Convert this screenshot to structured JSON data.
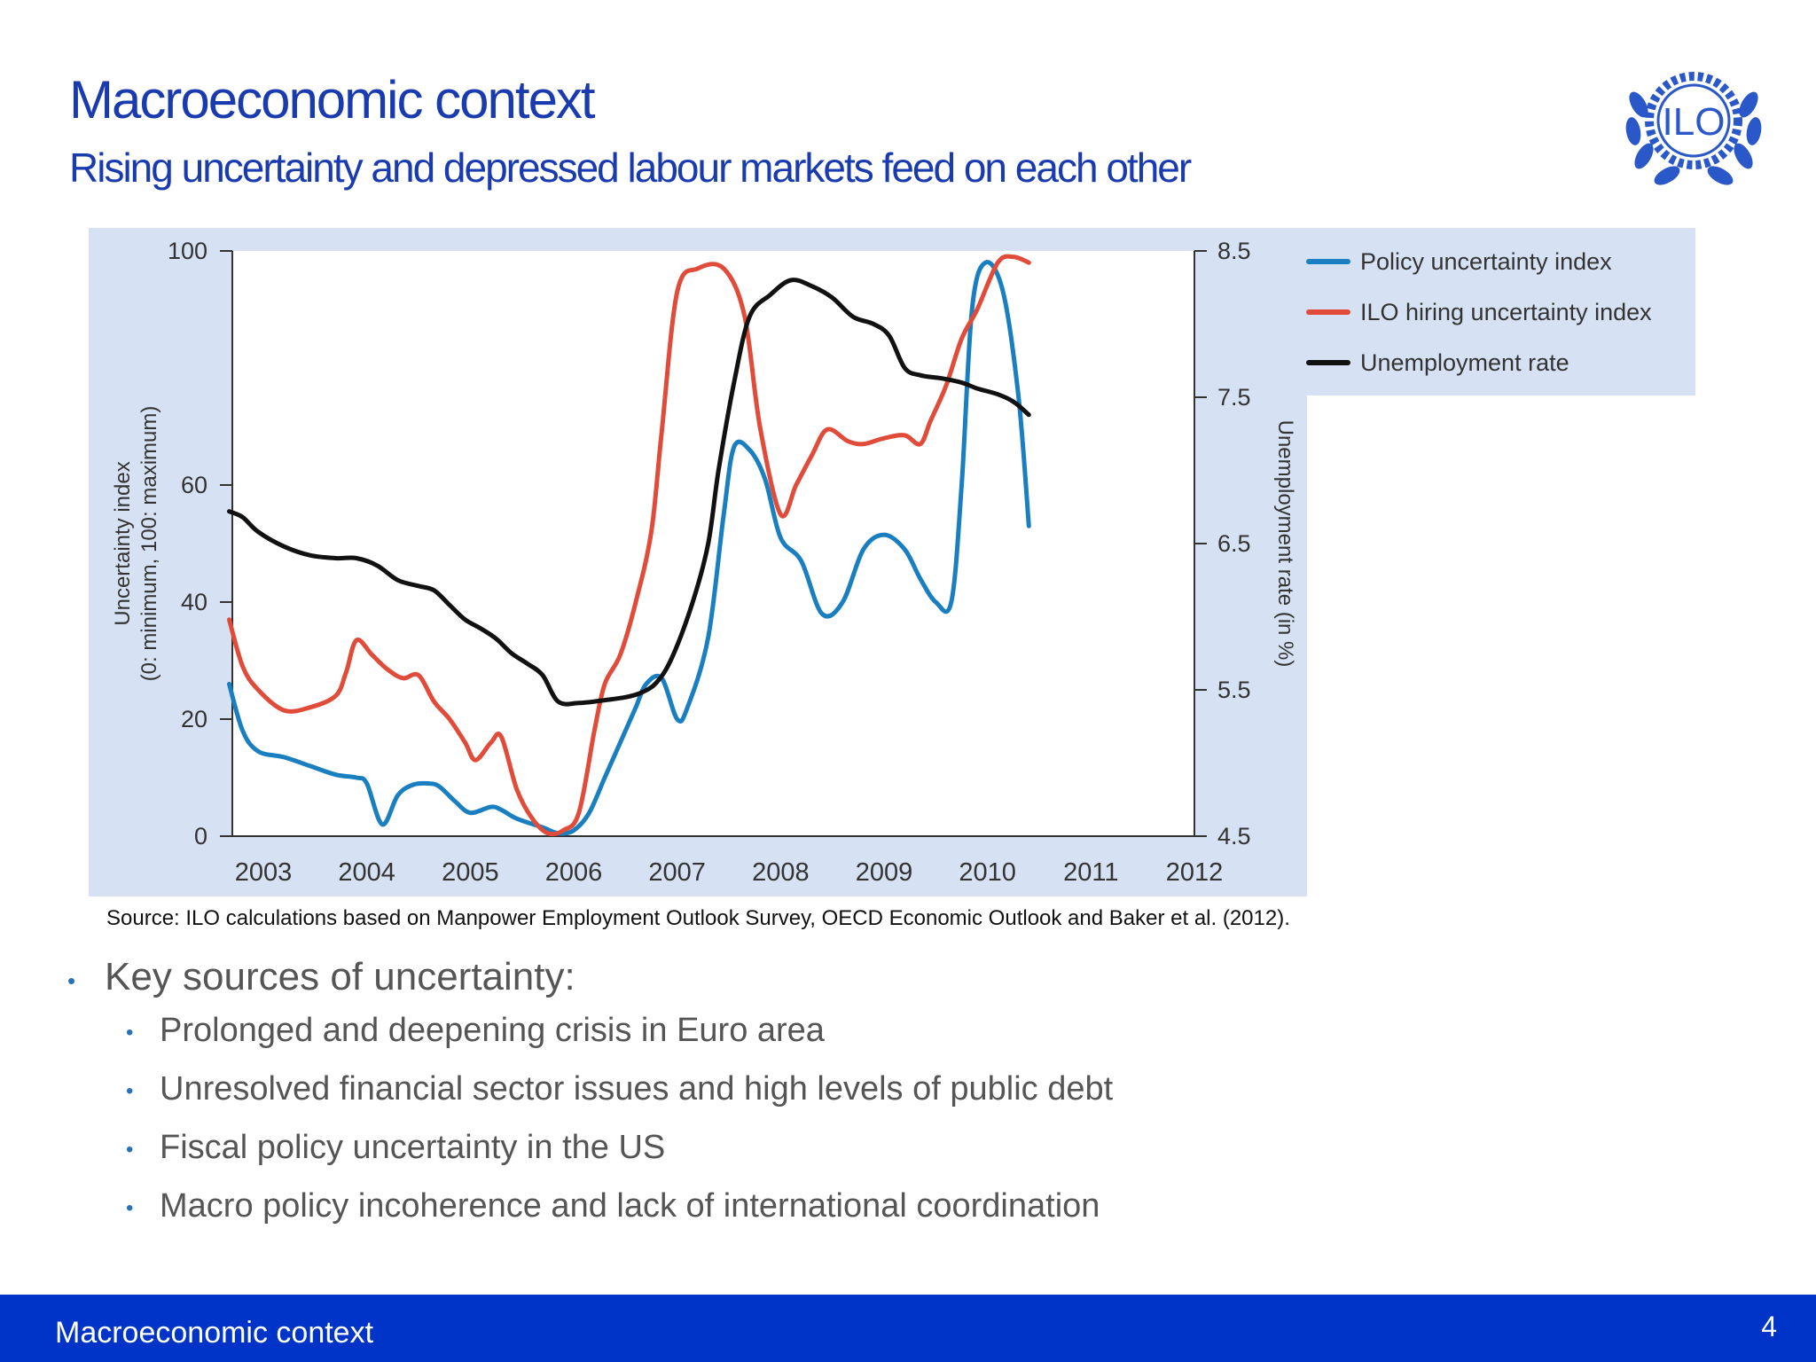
{
  "slide": {
    "title": "Macroeconomic context",
    "subtitle": "Rising uncertainty and depressed labour markets feed on each other",
    "logo_text": "ILO",
    "source": "Source: ILO calculations based on Manpower Employment Outlook Survey, OECD Economic Outlook and Baker et al. (2012).",
    "bullet_heading": "Key sources of uncertainty:",
    "bullets": [
      "Prolonged and deepening crisis in Euro area",
      "Unresolved financial sector issues and high levels of public debt",
      "Fiscal policy uncertainty in the US",
      "Macro policy incoherence and lack of international coordination"
    ],
    "footer_title": "Macroeconomic context",
    "page_number": "4",
    "colors": {
      "title": "#1a3bb0",
      "footer": "#0033c8",
      "chart_bg": "#d6e1f3"
    }
  },
  "chart_data": {
    "type": "line",
    "title": "",
    "xlabel": "",
    "ylabel": "Uncertainty index",
    "ylabel_sub": "(0: minimum, 100: maximum)",
    "y2label": "Unemployment rate (in %)",
    "xlim": [
      2003,
      2012.3
    ],
    "ylim": [
      0,
      100
    ],
    "y2lim": [
      4.5,
      8.5
    ],
    "x_ticks": [
      "2003",
      "2004",
      "2005",
      "2006",
      "2007",
      "2008",
      "2009",
      "2010",
      "2011",
      "2012"
    ],
    "y_ticks": [
      "0",
      "20",
      "40",
      "60",
      "100"
    ],
    "y2_ticks": [
      "4.5",
      "5.5",
      "6.5",
      "7.5",
      "8.5"
    ],
    "legend_position": "top-right, outside plot",
    "series": [
      {
        "name": "Policy uncertainty index",
        "color": "#1a7fc1",
        "axis": "left",
        "points": [
          [
            2002.97,
            26
          ],
          [
            2003.1,
            18
          ],
          [
            2003.25,
            14.5
          ],
          [
            2003.5,
            13.5
          ],
          [
            2003.75,
            12
          ],
          [
            2004.0,
            10.5
          ],
          [
            2004.2,
            10
          ],
          [
            2004.3,
            9
          ],
          [
            2004.45,
            2
          ],
          [
            2004.6,
            7
          ],
          [
            2004.75,
            8.8
          ],
          [
            2004.9,
            9
          ],
          [
            2005.0,
            8.5
          ],
          [
            2005.15,
            6
          ],
          [
            2005.3,
            4
          ],
          [
            2005.5,
            5
          ],
          [
            2005.6,
            4.5
          ],
          [
            2005.75,
            3
          ],
          [
            2006.0,
            1.5
          ],
          [
            2006.15,
            0.5
          ],
          [
            2006.3,
            1
          ],
          [
            2006.45,
            4
          ],
          [
            2006.6,
            10
          ],
          [
            2006.8,
            18
          ],
          [
            2006.9,
            22
          ],
          [
            2007.0,
            26
          ],
          [
            2007.15,
            27
          ],
          [
            2007.3,
            20
          ],
          [
            2007.4,
            22
          ],
          [
            2007.6,
            34
          ],
          [
            2007.75,
            55
          ],
          [
            2007.85,
            66.5
          ],
          [
            2008.0,
            66
          ],
          [
            2008.15,
            61
          ],
          [
            2008.3,
            51
          ],
          [
            2008.5,
            47
          ],
          [
            2008.7,
            38
          ],
          [
            2008.9,
            40
          ],
          [
            2009.1,
            49
          ],
          [
            2009.3,
            51.5
          ],
          [
            2009.5,
            49
          ],
          [
            2009.65,
            44
          ],
          [
            2009.8,
            40
          ],
          [
            2009.95,
            40
          ],
          [
            2010.05,
            60
          ],
          [
            2010.15,
            90
          ],
          [
            2010.28,
            98
          ],
          [
            2010.45,
            93
          ],
          [
            2010.6,
            75
          ],
          [
            2010.7,
            53
          ]
        ]
      },
      {
        "name": "ILO hiring uncertainty index",
        "color": "#e04b3a",
        "axis": "left",
        "points": [
          [
            2002.97,
            37
          ],
          [
            2003.1,
            29
          ],
          [
            2003.25,
            25
          ],
          [
            2003.5,
            21.5
          ],
          [
            2003.75,
            22
          ],
          [
            2004.0,
            24
          ],
          [
            2004.1,
            28
          ],
          [
            2004.2,
            33.5
          ],
          [
            2004.35,
            31
          ],
          [
            2004.5,
            28.5
          ],
          [
            2004.65,
            27
          ],
          [
            2004.8,
            27.5
          ],
          [
            2004.95,
            23
          ],
          [
            2005.1,
            20
          ],
          [
            2005.25,
            16
          ],
          [
            2005.35,
            13
          ],
          [
            2005.5,
            16
          ],
          [
            2005.6,
            17
          ],
          [
            2005.75,
            8
          ],
          [
            2005.9,
            3
          ],
          [
            2006.05,
            0.5
          ],
          [
            2006.2,
            1
          ],
          [
            2006.35,
            4
          ],
          [
            2006.5,
            18
          ],
          [
            2006.6,
            26
          ],
          [
            2006.75,
            31
          ],
          [
            2006.9,
            40
          ],
          [
            2007.05,
            52
          ],
          [
            2007.15,
            69
          ],
          [
            2007.3,
            93
          ],
          [
            2007.5,
            97
          ],
          [
            2007.75,
            97
          ],
          [
            2007.95,
            89
          ],
          [
            2008.1,
            70
          ],
          [
            2008.3,
            55
          ],
          [
            2008.45,
            60
          ],
          [
            2008.6,
            65
          ],
          [
            2008.75,
            69.5
          ],
          [
            2008.95,
            67.5
          ],
          [
            2009.1,
            67
          ],
          [
            2009.3,
            68
          ],
          [
            2009.5,
            68.5
          ],
          [
            2009.65,
            67
          ],
          [
            2009.75,
            71
          ],
          [
            2009.9,
            77
          ],
          [
            2010.05,
            85
          ],
          [
            2010.2,
            90
          ],
          [
            2010.4,
            98
          ],
          [
            2010.55,
            99
          ],
          [
            2010.7,
            98
          ]
        ]
      },
      {
        "name": "Unemployment rate",
        "color": "#111111",
        "axis": "right",
        "points": [
          [
            2002.97,
            6.72
          ],
          [
            2003.1,
            6.68
          ],
          [
            2003.25,
            6.58
          ],
          [
            2003.5,
            6.48
          ],
          [
            2003.75,
            6.42
          ],
          [
            2004.0,
            6.4
          ],
          [
            2004.2,
            6.4
          ],
          [
            2004.4,
            6.35
          ],
          [
            2004.6,
            6.25
          ],
          [
            2004.8,
            6.21
          ],
          [
            2004.95,
            6.18
          ],
          [
            2005.1,
            6.08
          ],
          [
            2005.25,
            5.98
          ],
          [
            2005.4,
            5.92
          ],
          [
            2005.55,
            5.85
          ],
          [
            2005.7,
            5.75
          ],
          [
            2005.85,
            5.68
          ],
          [
            2006.0,
            5.6
          ],
          [
            2006.15,
            5.42
          ],
          [
            2006.35,
            5.41
          ],
          [
            2006.6,
            5.43
          ],
          [
            2006.8,
            5.45
          ],
          [
            2006.95,
            5.48
          ],
          [
            2007.1,
            5.55
          ],
          [
            2007.25,
            5.72
          ],
          [
            2007.45,
            6.1
          ],
          [
            2007.6,
            6.5
          ],
          [
            2007.7,
            7.0
          ],
          [
            2007.85,
            7.6
          ],
          [
            2008.0,
            8.05
          ],
          [
            2008.2,
            8.2
          ],
          [
            2008.4,
            8.3
          ],
          [
            2008.6,
            8.26
          ],
          [
            2008.8,
            8.18
          ],
          [
            2009.0,
            8.05
          ],
          [
            2009.2,
            8.0
          ],
          [
            2009.35,
            7.92
          ],
          [
            2009.5,
            7.7
          ],
          [
            2009.65,
            7.65
          ],
          [
            2009.85,
            7.63
          ],
          [
            2010.05,
            7.6
          ],
          [
            2010.2,
            7.56
          ],
          [
            2010.4,
            7.52
          ],
          [
            2010.55,
            7.47
          ],
          [
            2010.7,
            7.38
          ]
        ]
      }
    ]
  }
}
